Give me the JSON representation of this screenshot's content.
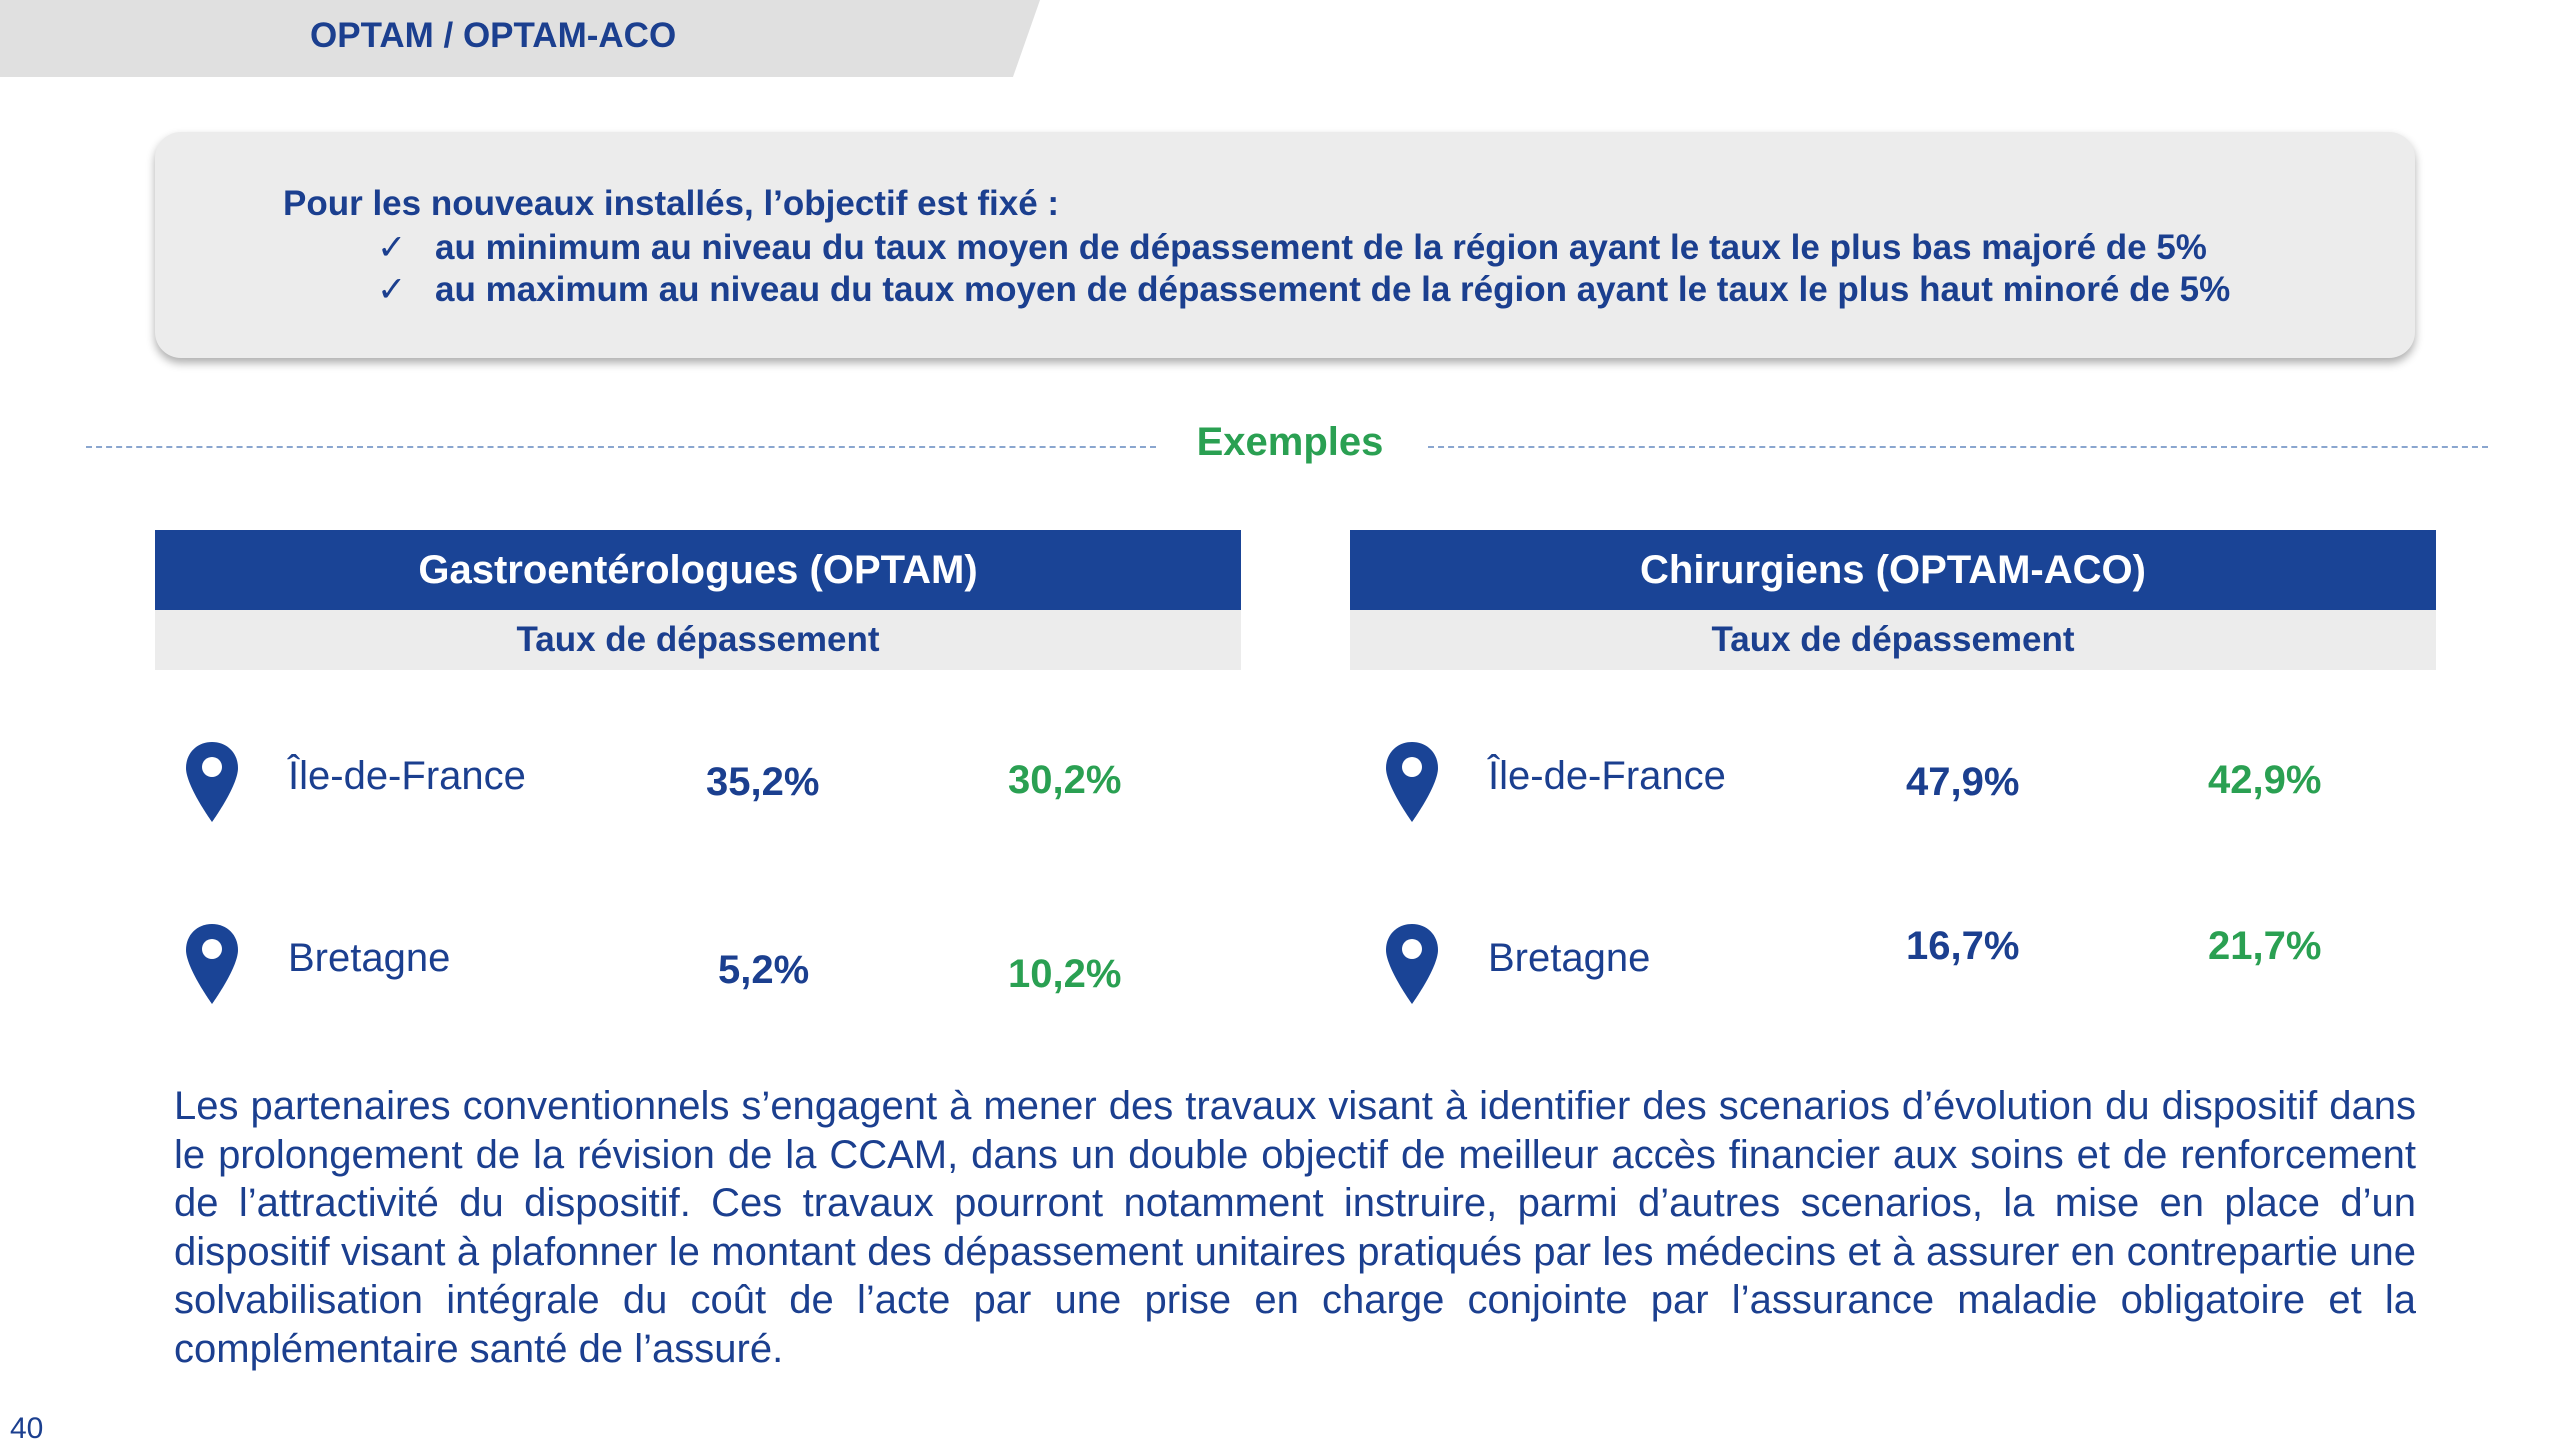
{
  "header": {
    "title": "OPTAM / OPTAM-ACO"
  },
  "info": {
    "intro": "Pour les nouveaux installés, l’objectif est fixé :",
    "check_icon": "check-mark",
    "lines": [
      "au minimum au niveau du taux moyen de dépassement de la région ayant le taux le plus bas majoré de 5%",
      "au maximum au niveau du taux moyen de dépassement de la région ayant le taux le plus haut minoré de 5%"
    ]
  },
  "examples": {
    "title": "Exemples"
  },
  "colors": {
    "brand_blue": "#1a4496",
    "text_blue": "#1b3f8f",
    "green": "#2aa052"
  },
  "cards": [
    {
      "title": "Gastroentérologues (OPTAM)",
      "subtitle": "Taux de dépassement",
      "rows": [
        {
          "region": "Île-de-France",
          "rate": "35,2%",
          "target": "30,2%"
        },
        {
          "region": "Bretagne",
          "rate": "5,2%",
          "target": "10,2%"
        }
      ]
    },
    {
      "title": "Chirurgiens (OPTAM-ACO)",
      "subtitle": "Taux de dépassement",
      "rows": [
        {
          "region": "Île-de-France",
          "rate": "47,9%",
          "target": "42,9%"
        },
        {
          "region": "Bretagne",
          "rate": "16,7%",
          "target": "21,7%"
        }
      ]
    }
  ],
  "body_text": "Les partenaires conventionnels s’engagent à mener des travaux visant à identifier des scenarios d’évolution du dispositif dans le prolongement de la révision de la CCAM, dans un double objectif de meilleur accès financier aux soins et de renforcement de l’attractivité du dispositif. Ces travaux pourront notamment instruire, parmi d’autres scenarios, la mise en place d’un dispositif visant à plafonner le montant des dépassement unitaires pratiqués par les médecins et à assurer en contrepartie une solvabilisation intégrale du coût de l’acte par une prise en charge conjointe par l’assurance maladie obligatoire et la complémentaire santé de l’assuré.",
  "page_number": "40"
}
